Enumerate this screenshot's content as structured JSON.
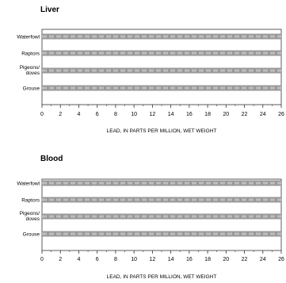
{
  "chart_data": [
    {
      "type": "bar",
      "title": "Liver",
      "categories": [
        "Waterfowl",
        "Raptors",
        "Pigeons/\ndoves",
        "Grouse"
      ],
      "xlabel": "LEAD, IN PARTS PER MILLION, WET WEIGHT",
      "ylabel": "",
      "xlim": [
        0,
        26
      ],
      "xticks": [
        0,
        2,
        4,
        6,
        8,
        10,
        12,
        14,
        16,
        18,
        20,
        22,
        24,
        26
      ],
      "bar_fill": "#999999",
      "stripe_color": "#bdbdbd",
      "axis_color": "#333333",
      "grid": false
    },
    {
      "type": "bar",
      "title": "Blood",
      "categories": [
        "Waterfowl",
        "Raptors",
        "Pigeons/\ndoves",
        "Grouse"
      ],
      "xlabel": "LEAD, IN PARTS PER MILLION, WET WEIGHT",
      "ylabel": "",
      "xlim": [
        0,
        26
      ],
      "xticks": [
        0,
        2,
        4,
        6,
        8,
        10,
        12,
        14,
        16,
        18,
        20,
        22,
        24,
        26
      ],
      "bar_fill": "#999999",
      "stripe_color": "#bdbdbd",
      "axis_color": "#333333",
      "grid": false
    }
  ]
}
